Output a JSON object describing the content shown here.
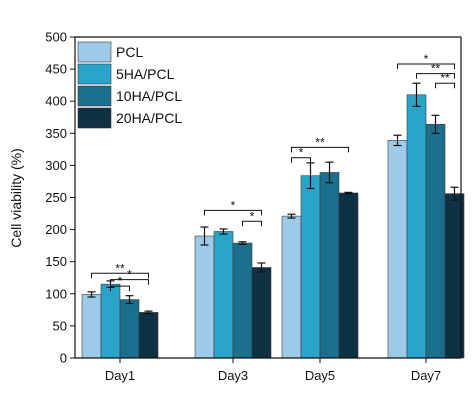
{
  "chart_data": {
    "type": "bar",
    "title": "",
    "xlabel": "",
    "ylabel": "Cell viability (%)",
    "ylim": [
      0,
      500
    ],
    "yticks": [
      0,
      50,
      100,
      150,
      200,
      250,
      300,
      350,
      400,
      450,
      500
    ],
    "categories": [
      "Day1",
      "Day3",
      "Day5",
      "Day7"
    ],
    "series": [
      {
        "name": "PCL",
        "color": "#9ecae9",
        "values": [
          99,
          190,
          221,
          339
        ],
        "errors": [
          4,
          14,
          3,
          8
        ]
      },
      {
        "name": "5HA/PCL",
        "color": "#2aa4c9",
        "values": [
          115,
          197,
          284,
          410
        ],
        "errors": [
          5,
          4,
          20,
          18
        ]
      },
      {
        "name": "10HA/PCL",
        "color": "#1b6e8c",
        "values": [
          91,
          179,
          289,
          364
        ],
        "errors": [
          6,
          2,
          16,
          14
        ]
      },
      {
        "name": "20HA/PCL",
        "color": "#0e3146",
        "values": [
          71,
          141,
          257,
          256
        ],
        "errors": [
          2,
          7,
          1,
          10
        ]
      }
    ],
    "significance": [
      {
        "category": 0,
        "from": 0,
        "to": 3,
        "y": 132,
        "label": "**"
      },
      {
        "category": 0,
        "from": 1,
        "to": 3,
        "y": 122,
        "label": "*"
      },
      {
        "category": 0,
        "from": 1,
        "to": 2,
        "y": 112,
        "label": "*"
      },
      {
        "category": 1,
        "from": 0,
        "to": 3,
        "y": 230,
        "label": "*"
      },
      {
        "category": 1,
        "from": 2,
        "to": 3,
        "y": 213,
        "label": "*"
      },
      {
        "category": 2,
        "from": 0,
        "to": 1,
        "y": 312,
        "label": "*"
      },
      {
        "category": 2,
        "from": 0,
        "to": 3,
        "y": 328,
        "label": "**"
      },
      {
        "category": 3,
        "from": 0,
        "to": 3,
        "y": 458,
        "label": "*"
      },
      {
        "category": 3,
        "from": 1,
        "to": 3,
        "y": 443,
        "label": "**"
      },
      {
        "category": 3,
        "from": 2,
        "to": 3,
        "y": 428,
        "label": "**"
      }
    ],
    "legend_position": "top-left",
    "grid": false
  }
}
